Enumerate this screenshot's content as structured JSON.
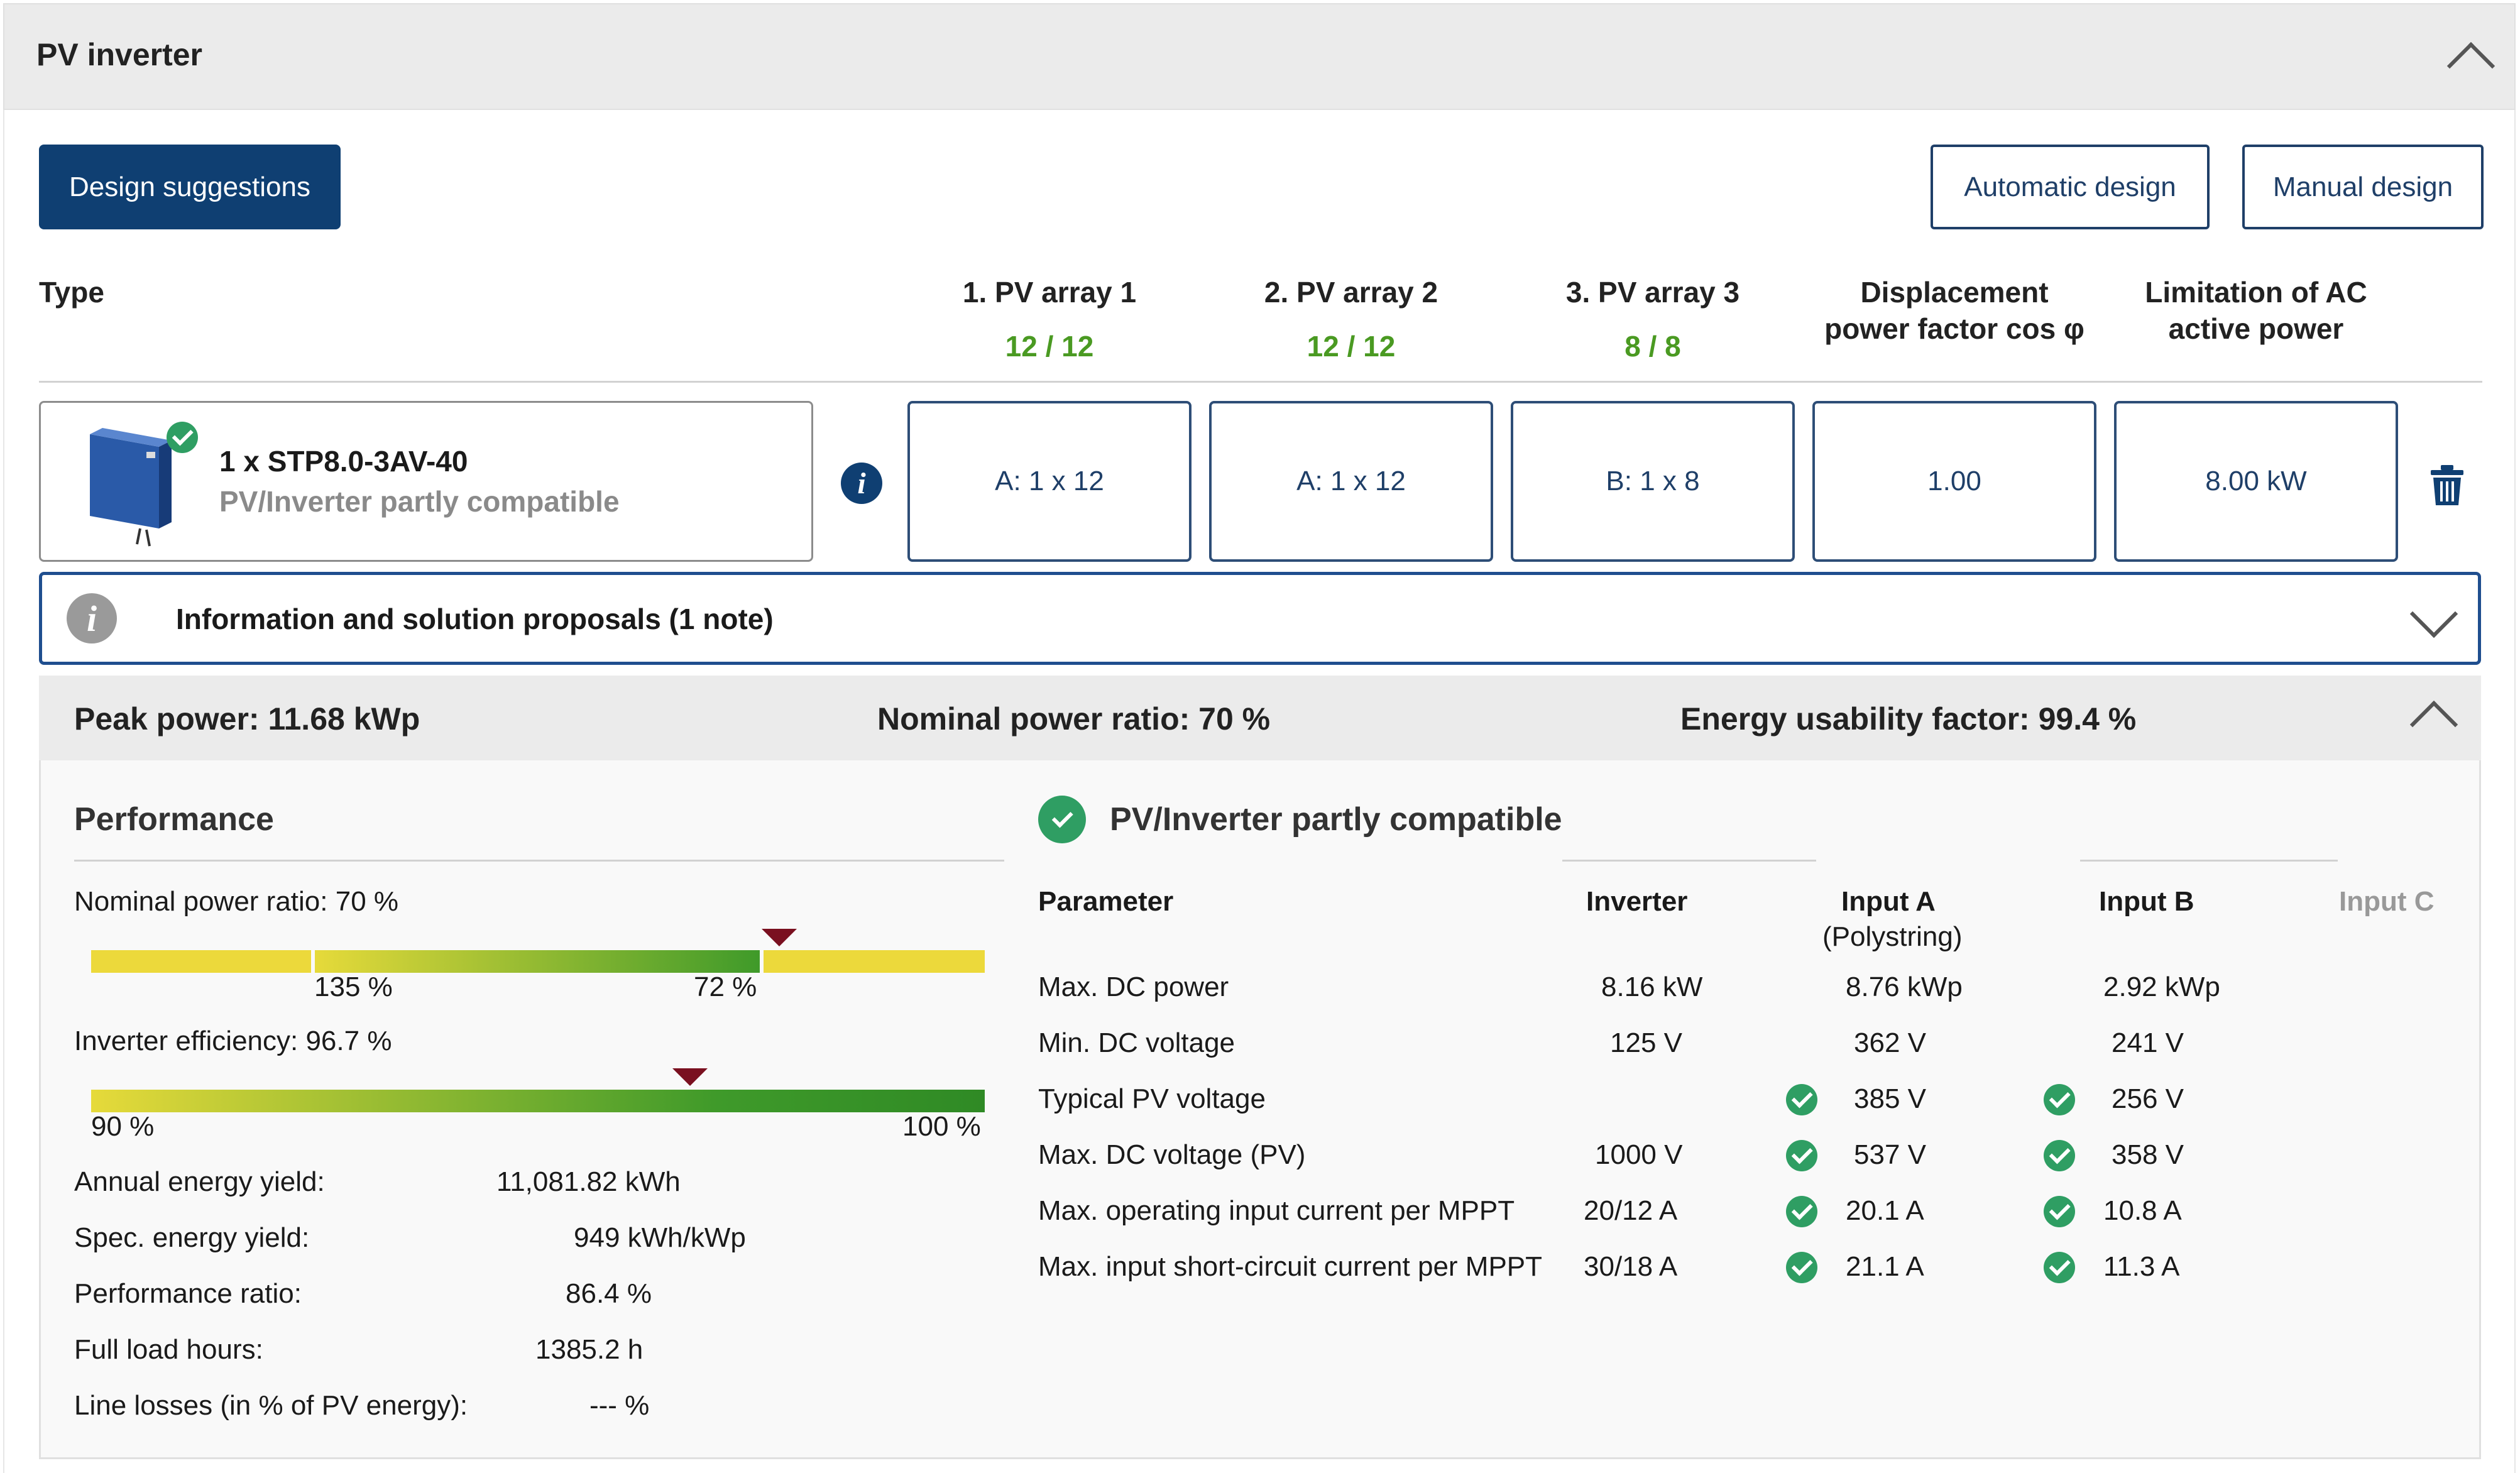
{
  "panel": {
    "title": "PV inverter"
  },
  "buttons": {
    "design_suggestions": "Design suggestions",
    "automatic_design": "Automatic design",
    "manual_design": "Manual design"
  },
  "columns": {
    "type": "Type",
    "pv_array_1": "1. PV array 1",
    "pv_array_1_count": "12 / 12",
    "pv_array_2": "2. PV array 2",
    "pv_array_2_count": "12 / 12",
    "pv_array_3": "3. PV array 3",
    "pv_array_3_count": "8 / 8",
    "displacement_line1": "Displacement",
    "displacement_line2": "power factor cos φ",
    "limitation_line1": "Limitation of AC",
    "limitation_line2": "active power"
  },
  "inverter_row": {
    "name": "1 x STP8.0-3AV-40",
    "compat": "PV/Inverter partly compatible",
    "cells": [
      "A: 1 x 12",
      "A: 1 x 12",
      "B: 1 x 8",
      "1.00",
      "8.00 kW"
    ]
  },
  "info_bar": {
    "label": "Information and solution proposals (1 note)"
  },
  "summary": {
    "peak_power": "Peak power: 11.68 kWp",
    "nominal_ratio": "Nominal power ratio: 70 %",
    "energy_usability": "Energy usability factor: 99.4 %"
  },
  "performance": {
    "title": "Performance",
    "nominal_label": "Nominal power ratio: 70 %",
    "nominal_bar_left": "135 %",
    "nominal_bar_right": "72 %",
    "nominal_marker_fraction": 0.77,
    "efficiency_label": "Inverter efficiency: 96.7 %",
    "efficiency_min": "90 %",
    "efficiency_max": "100 %",
    "efficiency_marker_fraction": 0.67,
    "rows": [
      {
        "label": "Annual energy yield:",
        "value": "11,081.82 kWh"
      },
      {
        "label": "Spec. energy yield:",
        "value": "949 kWh/kWp"
      },
      {
        "label": "Performance ratio:",
        "value": "86.4 %"
      },
      {
        "label": "Full load hours:",
        "value": "1385.2 h"
      },
      {
        "label": "Line losses (in % of PV energy):",
        "value": "--- %"
      }
    ]
  },
  "compat_table": {
    "title": "PV/Inverter partly compatible",
    "headers": {
      "parameter": "Parameter",
      "inverter": "Inverter",
      "input_a": "Input A",
      "input_a_sub": "(Polystring)",
      "input_b": "Input B",
      "input_c": "Input C"
    },
    "rows": [
      {
        "param": "Max. DC power",
        "inverter": "8.16 kW",
        "a": "8.76 kWp",
        "a_check": false,
        "b": "2.92 kWp",
        "b_check": false
      },
      {
        "param": "Min. DC voltage",
        "inverter": "125 V",
        "a": "362 V",
        "a_check": false,
        "b": "241 V",
        "b_check": false
      },
      {
        "param": "Typical PV voltage",
        "inverter": "",
        "a": "385 V",
        "a_check": true,
        "b": "256 V",
        "b_check": true
      },
      {
        "param": "Max. DC voltage (PV)",
        "inverter": "1000 V",
        "a": "537 V",
        "a_check": true,
        "b": "358 V",
        "b_check": true
      },
      {
        "param": "Max. operating input current per MPPT",
        "inverter": "20/12 A",
        "a": "20.1 A",
        "a_check": true,
        "b": "10.8 A",
        "b_check": true
      },
      {
        "param": "Max. input short-circuit current per MPPT",
        "inverter": "30/18 A",
        "a": "21.1 A",
        "a_check": true,
        "b": "11.3 A",
        "b_check": true
      }
    ]
  }
}
